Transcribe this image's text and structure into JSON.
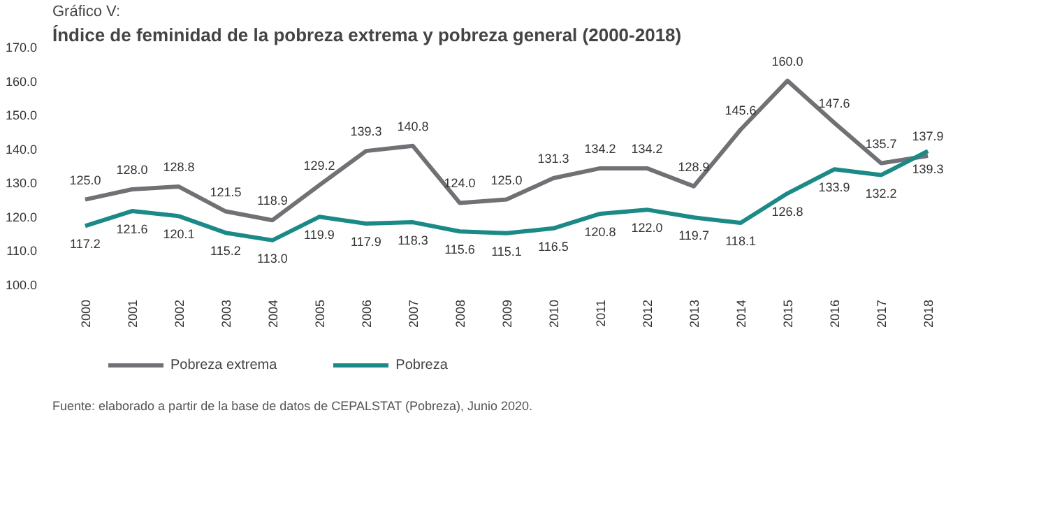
{
  "chart_data": {
    "type": "line",
    "subtitle": "Gráfico V:",
    "title": "Índice de feminidad de la pobreza extrema y pobreza general (2000-2018)",
    "categories": [
      "2000",
      "2001",
      "2002",
      "2003",
      "2004",
      "2005",
      "2006",
      "2007",
      "2008",
      "2009",
      "2010",
      "2011",
      "2012",
      "2013",
      "2014",
      "2015",
      "2016",
      "2017",
      "2018"
    ],
    "series": [
      {
        "name": "Pobreza extrema",
        "color": "#717074",
        "values": [
          125.0,
          128.0,
          128.8,
          121.5,
          118.9,
          129.2,
          139.3,
          140.8,
          124.0,
          125.0,
          131.3,
          134.2,
          134.2,
          128.9,
          145.6,
          160.0,
          147.6,
          135.7,
          137.9
        ],
        "value_labels": [
          "125.0",
          "128.0",
          "128.8",
          "121.5",
          "118.9",
          "129.2",
          "139.3",
          "140.8",
          "124.0",
          "125.0",
          "131.3",
          "134.2",
          "134.2",
          "128.9",
          "145.6",
          "160.0",
          "147.6",
          "135.7",
          "137.9"
        ]
      },
      {
        "name": "Pobreza",
        "color": "#1b8a87",
        "values": [
          117.2,
          121.6,
          120.1,
          115.2,
          113.0,
          119.9,
          117.9,
          118.3,
          115.6,
          115.1,
          116.5,
          120.8,
          122.0,
          119.7,
          118.1,
          126.8,
          133.9,
          132.2,
          139.3
        ],
        "value_labels": [
          "117.2",
          "121.6",
          "120.1",
          "115.2",
          "113.0",
          "119.9",
          "117.9",
          "118.3",
          "115.6",
          "115.1",
          "116.5",
          "120.8",
          "122.0",
          "119.7",
          "118.1",
          "126.8",
          "133.9",
          "132.2",
          "139.3"
        ]
      }
    ],
    "ylim": [
      100,
      170
    ],
    "yticks": [
      {
        "value": 100,
        "label": "100.0"
      },
      {
        "value": 110,
        "label": "110.0"
      },
      {
        "value": 120,
        "label": "120.0"
      },
      {
        "value": 130,
        "label": "130.0"
      },
      {
        "value": 140,
        "label": "140.0"
      },
      {
        "value": 150,
        "label": "150.0"
      },
      {
        "value": 160,
        "label": "160.0"
      },
      {
        "value": 170,
        "label": "170.0"
      }
    ],
    "grid": false,
    "legend": "bottom",
    "marker": "none",
    "line_style": "solid",
    "annotations": [
      "Fuente: elaborado a partir de la base de datos de CEPALSTAT (Pobreza), Junio 2020."
    ]
  }
}
